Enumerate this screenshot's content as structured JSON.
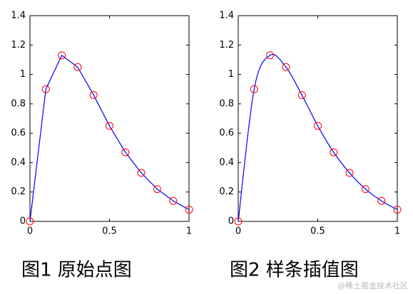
{
  "chart_data": [
    {
      "type": "line",
      "interpolation": "linear",
      "caption": "图1  原始点图",
      "x": [
        0,
        0.1,
        0.2,
        0.3,
        0.4,
        0.5,
        0.6,
        0.7,
        0.8,
        0.9,
        1
      ],
      "series": [
        {
          "color": "#0000ff",
          "marker_color": "#ff0000",
          "values": [
            0,
            0.9,
            1.13,
            1.05,
            0.86,
            0.65,
            0.47,
            0.33,
            0.22,
            0.14,
            0.08
          ]
        }
      ],
      "xlim": [
        0,
        1
      ],
      "xticks": [
        0,
        0.5,
        1
      ],
      "ylim": [
        0,
        1.4
      ],
      "yticks": [
        0,
        0.2,
        0.4,
        0.6,
        0.8,
        1,
        1.2,
        1.4
      ]
    },
    {
      "type": "line",
      "interpolation": "spline",
      "caption": "图2  样条插值图",
      "x": [
        0,
        0.1,
        0.2,
        0.3,
        0.4,
        0.5,
        0.6,
        0.7,
        0.8,
        0.9,
        1
      ],
      "series": [
        {
          "color": "#0000ff",
          "marker_color": "#ff0000",
          "values": [
            0,
            0.9,
            1.13,
            1.05,
            0.86,
            0.65,
            0.47,
            0.33,
            0.22,
            0.14,
            0.08
          ]
        }
      ],
      "xlim": [
        0,
        1
      ],
      "xticks": [
        0,
        0.5,
        1
      ],
      "ylim": [
        0,
        1.4
      ],
      "yticks": [
        0,
        0.2,
        0.4,
        0.6,
        0.8,
        1,
        1.2,
        1.4
      ]
    }
  ],
  "watermark": "@稀土掘金技术社区"
}
